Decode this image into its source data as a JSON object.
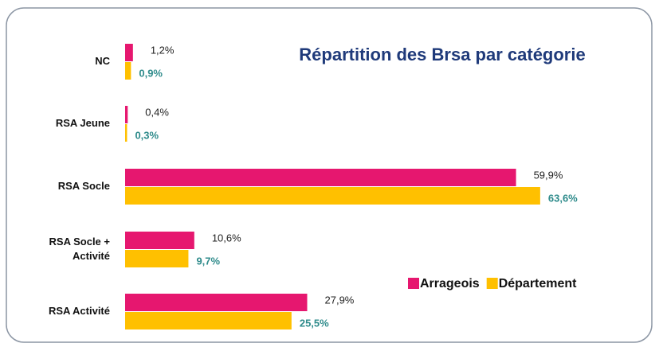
{
  "chart_data": {
    "type": "bar",
    "orientation": "horizontal",
    "title": "Répartition des Brsa par catégorie",
    "categories": [
      "NC",
      "RSA Jeune",
      "RSA Socle",
      "RSA Socle + Activité",
      "RSA Activité"
    ],
    "series": [
      {
        "name": "Arrageois",
        "color": "#e6176f",
        "values": [
          1.2,
          0.4,
          59.9,
          10.6,
          27.9
        ],
        "value_labels": [
          "1,2%",
          "0,4%",
          "59,9%",
          "10,6%",
          "27,9%"
        ],
        "label_color": "#222222"
      },
      {
        "name": "Département",
        "color": "#ffc000",
        "values": [
          0.9,
          0.3,
          63.6,
          9.7,
          25.5
        ],
        "value_labels": [
          "0,9%",
          "0,3%",
          "63,6%",
          "9,7%",
          "25,5%"
        ],
        "label_color": "#2e8b8b"
      }
    ],
    "legend": "right"
  }
}
